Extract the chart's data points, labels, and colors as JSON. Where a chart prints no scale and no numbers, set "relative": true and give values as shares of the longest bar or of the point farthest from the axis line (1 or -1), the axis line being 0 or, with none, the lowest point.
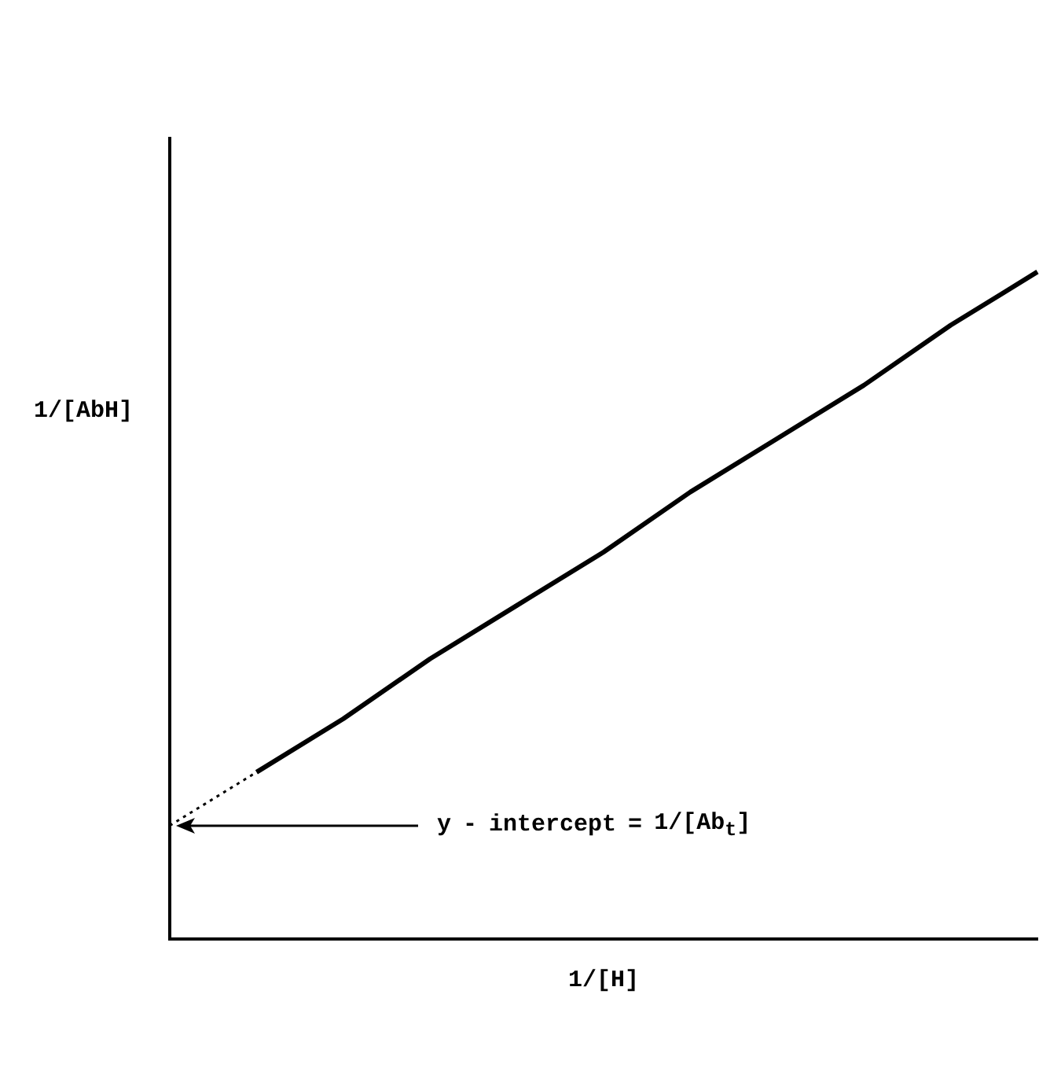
{
  "chart_data": {
    "type": "line",
    "relative": true,
    "xlabel": "1/[H]",
    "ylabel": "1/[AbH]",
    "categories": [
      null,
      null,
      null,
      null,
      null,
      null,
      null,
      null,
      null,
      null,
      null
    ],
    "series": [
      {
        "color": "#000000",
        "line_style": "dotted",
        "values": [
          0.17,
          0.25,
          null,
          null,
          null,
          null,
          null,
          null,
          null,
          null,
          null
        ]
      },
      {
        "color": "#000000",
        "line_style": "solid",
        "values": [
          null,
          0.25,
          0.33,
          0.42,
          0.5,
          0.58,
          0.67,
          0.75,
          0.83,
          0.92,
          1.0
        ]
      }
    ],
    "annotations": [
      "y - intercept = 1/[Ab$_{t}$]"
    ],
    "grid": false,
    "legend": false,
    "marker": "none"
  }
}
